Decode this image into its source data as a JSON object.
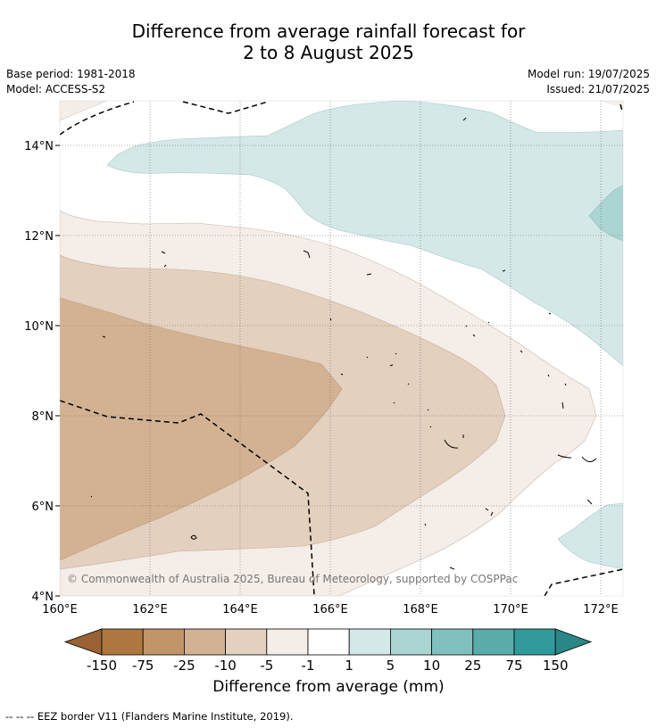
{
  "header": {
    "title_line1": "Difference from average rainfall forecast for",
    "title_line2": "2 to 8 August 2025",
    "base_period": "Base period: 1981-2018",
    "model": "Model: ACCESS-S2",
    "model_run": "Model run: 19/07/2025",
    "issued": "Issued: 21/07/2025"
  },
  "map": {
    "lon_ticks": [
      "160°E",
      "162°E",
      "164°E",
      "166°E",
      "168°E",
      "170°E",
      "172°E"
    ],
    "lat_ticks": [
      "14°N",
      "12°N",
      "10°N",
      "8°N",
      "6°N",
      "4°N"
    ],
    "copyright": "© Commonwealth of Australia 2025, Bureau of Meteorology, supported by COSPPac"
  },
  "colorbar": {
    "title": "Difference from average (mm)",
    "labels": [
      "-150",
      "-75",
      "-25",
      "-10",
      "-5",
      "-1",
      "1",
      "5",
      "10",
      "25",
      "75",
      "150"
    ],
    "colors": [
      "#ae7840",
      "#c29568",
      "#d3b293",
      "#e3d0bf",
      "#f5ede7",
      "#ffffff",
      "#d4e8e7",
      "#aad5d3",
      "#82c0c0",
      "#5aacab",
      "#32999a"
    ],
    "low_extend_color": "#9a6333",
    "high_extend_color": "#2a8787"
  },
  "legend": {
    "eez_line": "--  --  -- EEZ border V11 (Flanders Marine Institute, 2019)."
  }
}
